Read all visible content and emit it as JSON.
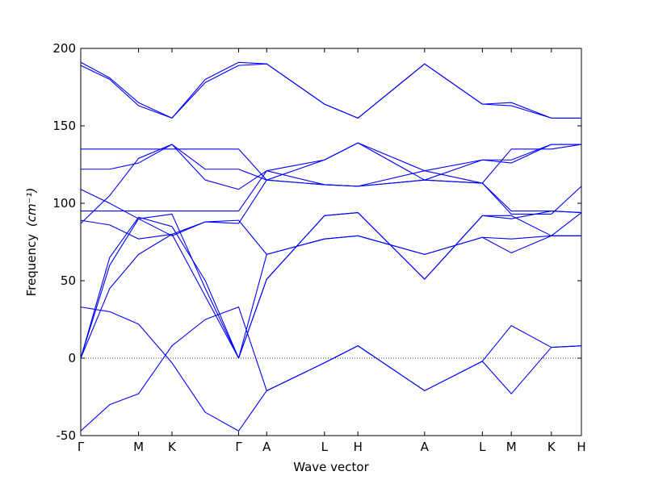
{
  "chart_data": {
    "type": "line",
    "xlabel": "Wave vector",
    "ylabel": "Frequency",
    "ylabel_unit": "(cm⁻¹)",
    "ylim": [
      -50,
      200
    ],
    "yticks": [
      -50,
      0,
      50,
      100,
      150,
      200
    ],
    "xticks": [
      "Γ",
      "M",
      "K",
      "Γ",
      "A",
      "L",
      "H",
      "A",
      "L",
      "M",
      "K",
      "H"
    ],
    "xtick_positions": [
      0,
      0.577,
      0.911,
      1.577,
      1.857,
      2.434,
      2.768,
      3.434,
      4.011,
      4.3,
      4.7,
      5.0
    ],
    "zero_line": "dotted",
    "color": "#0000ff",
    "series": [
      {
        "x": [
          0,
          0.289,
          0.577,
          0.911,
          1.244,
          1.577,
          1.857,
          2.434,
          2.768,
          3.434,
          4.011,
          4.3,
          4.7,
          5.0
        ],
        "values": [
          -47,
          -30,
          -23,
          8,
          25,
          33,
          -21,
          -3,
          8,
          -21,
          -2,
          21,
          7,
          8
        ]
      },
      {
        "x": [
          0,
          0.289,
          0.577,
          0.911,
          1.244,
          1.577,
          1.857,
          2.434,
          2.768,
          3.434,
          4.011,
          4.3,
          4.7,
          5.0
        ],
        "values": [
          33,
          30,
          22,
          -3,
          -35,
          -47,
          -21,
          -3,
          8,
          -21,
          -2,
          -23,
          7,
          8
        ]
      },
      {
        "x": [
          0,
          0.289,
          0.577,
          0.911,
          1.244,
          1.577,
          1.857,
          2.434,
          2.768,
          3.434,
          4.011,
          4.3,
          4.7,
          5.0
        ],
        "values": [
          0,
          45,
          67,
          80,
          40,
          0,
          67,
          77,
          79,
          67,
          78,
          68,
          79,
          79
        ]
      },
      {
        "x": [
          0,
          0.289,
          0.577,
          0.911,
          1.244,
          1.577,
          1.857,
          2.434,
          2.768,
          3.434,
          4.011,
          4.3,
          4.7,
          5.0
        ],
        "values": [
          0,
          60,
          90,
          93,
          45,
          0,
          51,
          92,
          94,
          51,
          92,
          90,
          95,
          94
        ]
      },
      {
        "x": [
          0,
          0.289,
          0.577,
          0.911,
          1.244,
          1.577,
          1.857,
          2.434,
          2.768,
          3.434,
          4.011,
          4.3,
          4.7,
          5.0
        ],
        "values": [
          0,
          65,
          91,
          85,
          50,
          0,
          51,
          92,
          94,
          51,
          92,
          92,
          79,
          94
        ]
      },
      {
        "x": [
          0,
          0.289,
          0.577,
          0.911,
          1.244,
          1.577,
          1.857,
          2.434,
          2.768,
          3.434,
          4.011,
          4.3,
          4.7,
          5.0
        ],
        "values": [
          89,
          86,
          77,
          80,
          88,
          89,
          67,
          77,
          79,
          67,
          78,
          77,
          79,
          79
        ]
      },
      {
        "x": [
          0,
          0.289,
          0.577,
          0.911,
          1.244,
          1.577,
          1.857,
          2.434,
          2.768,
          3.434,
          4.011,
          4.3,
          4.7,
          5.0
        ],
        "values": [
          109,
          100,
          90,
          79,
          88,
          87,
          115,
          128,
          139,
          115,
          128,
          128,
          138,
          138
        ]
      },
      {
        "x": [
          0,
          0.289,
          0.577,
          0.911,
          1.244,
          1.577,
          1.857,
          2.434,
          2.768,
          3.434,
          4.011,
          4.3,
          4.7,
          5.0
        ],
        "values": [
          95,
          95,
          95,
          95,
          95,
          95,
          121,
          112,
          111,
          121,
          113,
          95,
          95,
          94
        ]
      },
      {
        "x": [
          0,
          0.289,
          0.577,
          0.911,
          1.244,
          1.577,
          1.857,
          2.434,
          2.768,
          3.434,
          4.011,
          4.3,
          4.7,
          5.0
        ],
        "values": [
          122,
          122,
          126,
          138,
          122,
          122,
          115,
          112,
          111,
          115,
          113,
          93,
          93,
          111
        ]
      },
      {
        "x": [
          0,
          0.289,
          0.577,
          0.911,
          1.244,
          1.577,
          1.857,
          2.434,
          2.768,
          3.434,
          4.011,
          4.3,
          4.7,
          5.0
        ],
        "values": [
          87,
          105,
          129,
          138,
          115,
          109,
          121,
          128,
          139,
          121,
          128,
          126,
          138,
          138
        ]
      },
      {
        "x": [
          0,
          0.289,
          0.577,
          0.911,
          1.244,
          1.577,
          1.857,
          2.434,
          2.768,
          3.434,
          4.011,
          4.3,
          4.7,
          5.0
        ],
        "values": [
          135,
          135,
          135,
          135,
          135,
          135,
          115,
          112,
          111,
          115,
          113,
          135,
          135,
          138
        ]
      },
      {
        "x": [
          0,
          0.289,
          0.577,
          0.911,
          1.244,
          1.577,
          1.857,
          2.434,
          2.768,
          3.434,
          4.011,
          4.3,
          4.7,
          5.0
        ],
        "values": [
          189,
          180,
          163,
          155,
          178,
          189,
          190,
          164,
          155,
          190,
          164,
          163,
          155,
          155
        ]
      },
      {
        "x": [
          0,
          0.289,
          0.577,
          0.911,
          1.244,
          1.577,
          1.857,
          2.434,
          2.768,
          3.434,
          4.011,
          4.3,
          4.7,
          5.0
        ],
        "values": [
          191,
          181,
          165,
          155,
          180,
          191,
          190,
          164,
          155,
          190,
          164,
          165,
          155,
          155
        ]
      }
    ]
  }
}
